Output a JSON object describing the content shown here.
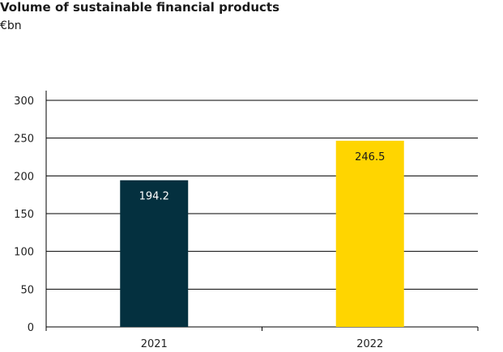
{
  "chart_data": {
    "type": "bar",
    "title": "Volume of sustainable financial products",
    "subtitle": "€bn",
    "categories": [
      "2021",
      "2022"
    ],
    "values": [
      194.2,
      246.5
    ],
    "data_labels": [
      "194.2",
      "246.5"
    ],
    "bar_colors": [
      "#04303f",
      "#ffd500"
    ],
    "label_colors": [
      "#ffffff",
      "#1a1a1a"
    ],
    "ylim": [
      0,
      300
    ],
    "yticks": [
      "0",
      "50",
      "100",
      "150",
      "200",
      "250",
      "300"
    ],
    "grid": true,
    "legend": "none"
  }
}
